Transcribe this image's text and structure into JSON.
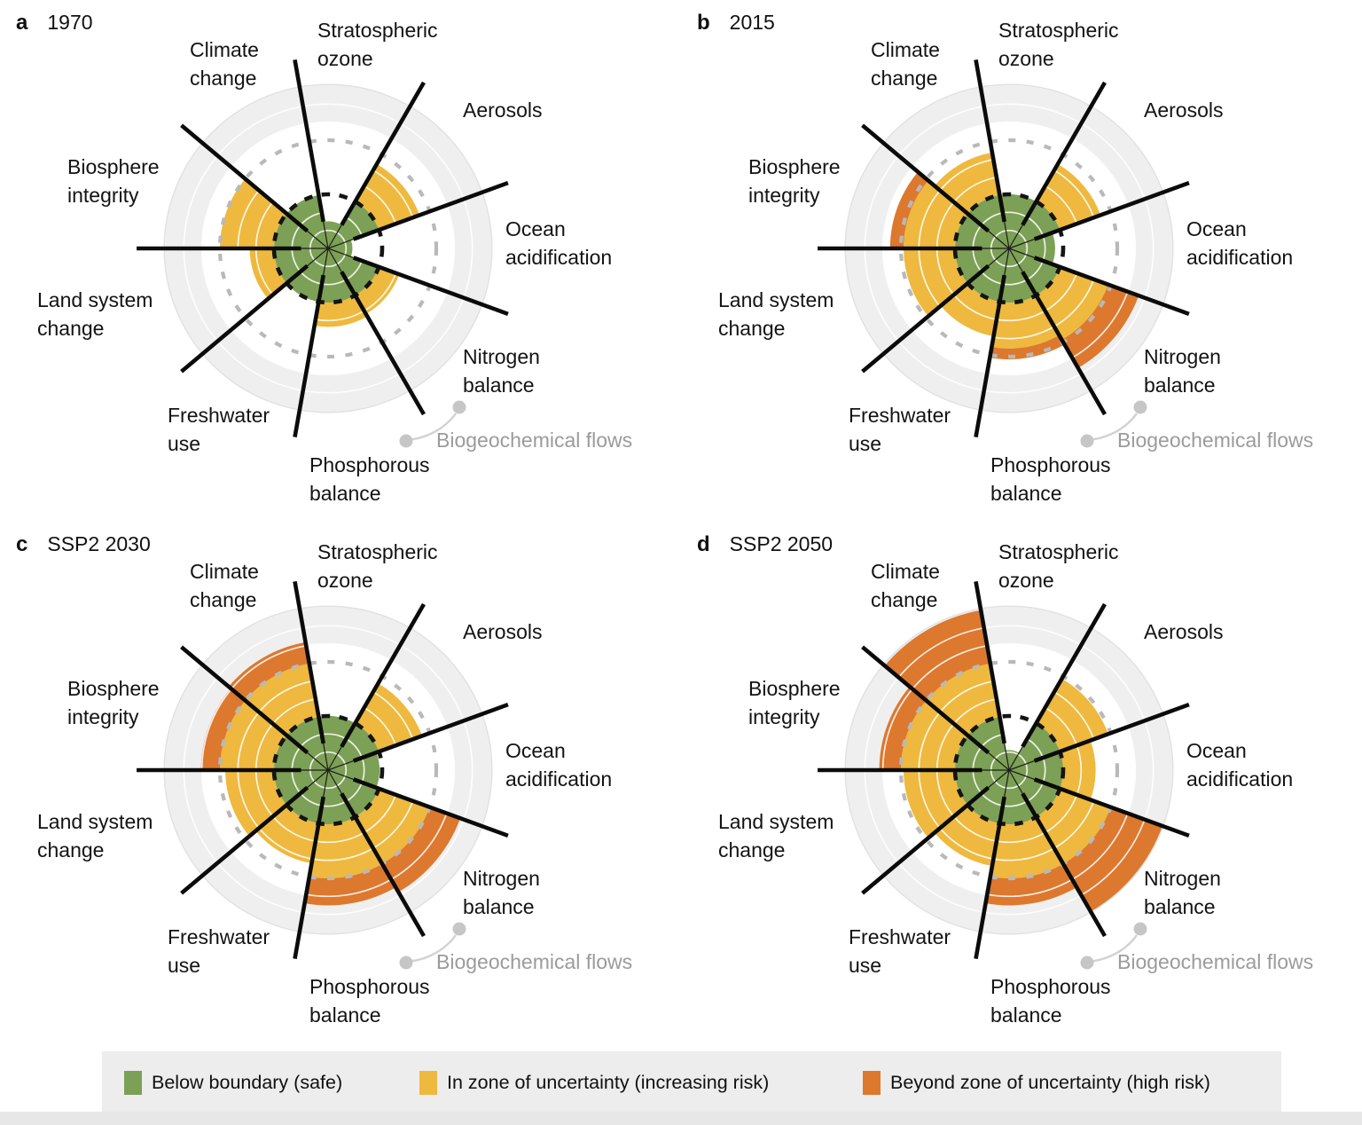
{
  "annotation": {
    "label": "Biogeochemical flows"
  },
  "sector_labels": [
    {
      "id": "climate-change",
      "line1": "Climate",
      "line2": "change"
    },
    {
      "id": "stratospheric-ozone",
      "line1": "Stratospheric",
      "line2": "ozone"
    },
    {
      "id": "aerosols",
      "line1": "Aerosols",
      "line2": ""
    },
    {
      "id": "ocean-acidification",
      "line1": "Ocean",
      "line2": "acidification"
    },
    {
      "id": "nitrogen-balance",
      "line1": "Nitrogen",
      "line2": "balance"
    },
    {
      "id": "phosphorous-balance",
      "line1": "Phosphorous",
      "line2": "balance"
    },
    {
      "id": "freshwater-use",
      "line1": "Freshwater",
      "line2": "use"
    },
    {
      "id": "land-system-change",
      "line1": "Land system",
      "line2": "change"
    },
    {
      "id": "biosphere-integrity",
      "line1": "Biosphere",
      "line2": "integrity"
    }
  ],
  "legend": {
    "items": [
      {
        "label": "Below boundary (safe)",
        "color": "#7ca055"
      },
      {
        "label": "In zone of uncertainty (increasing risk)",
        "color": "#eeb93e"
      },
      {
        "label": "Beyond zone of uncertainty (high risk)",
        "color": "#dd782f"
      }
    ],
    "background": "#ededed"
  },
  "colors": {
    "safe_green": "#7ca055",
    "uncertainty_yellow": "#eeb93e",
    "high_risk_orange": "#dd782f",
    "boundary_dash_black": "#141414",
    "uncertainty_dash_gray": "#b9b9b9",
    "outer_zone_fill": "#efefef",
    "gray_text": "#9b9b9b",
    "spoke_black": "#0b0b0b"
  },
  "chart_data": [
    {
      "type": "polar-sector",
      "panel": "a",
      "title": "1970",
      "radial_scale": {
        "boundary_black_dashed": 1.0,
        "uncertainty_outer_gray_dashed": 2.0,
        "outer_edge": 3.0,
        "gridline_step": 0.333
      },
      "sectors": [
        {
          "label": "Ocean acidification",
          "center_angle_deg": 0,
          "green_to": 0.45,
          "yellow_to": null,
          "orange_to": null,
          "status": "below boundary (safe)"
        },
        {
          "label": "Aerosols",
          "center_angle_deg": 40,
          "green_to": 1.0,
          "yellow_to": 1.8,
          "orange_to": null,
          "status": "in zone of uncertainty (increasing risk)"
        },
        {
          "label": "Stratospheric ozone",
          "center_angle_deg": 80,
          "green_to": 0.5,
          "yellow_to": null,
          "orange_to": null,
          "status": "below boundary (safe)"
        },
        {
          "label": "Climate change",
          "center_angle_deg": 120,
          "green_to": 1.0,
          "yellow_to": null,
          "orange_to": null,
          "status": "below boundary (safe)"
        },
        {
          "label": "Biosphere integrity",
          "center_angle_deg": 160,
          "green_to": 1.0,
          "yellow_to": 2.0,
          "orange_to": null,
          "status": "in zone of uncertainty (increasing risk)"
        },
        {
          "label": "Land system change",
          "center_angle_deg": 200,
          "green_to": 1.0,
          "yellow_to": 1.45,
          "orange_to": null,
          "status": "in zone of uncertainty (increasing risk)"
        },
        {
          "label": "Freshwater use",
          "center_angle_deg": 240,
          "green_to": 1.0,
          "yellow_to": null,
          "orange_to": null,
          "status": "below boundary (safe)"
        },
        {
          "label": "Phosphorous balance",
          "center_angle_deg": 280,
          "green_to": 1.0,
          "yellow_to": 1.45,
          "orange_to": null,
          "status": "in zone of uncertainty (increasing risk)"
        },
        {
          "label": "Nitrogen balance",
          "center_angle_deg": 320,
          "green_to": 1.0,
          "yellow_to": 1.4,
          "orange_to": null,
          "status": "in zone of uncertainty (increasing risk)"
        }
      ]
    },
    {
      "type": "polar-sector",
      "panel": "b",
      "title": "2015",
      "radial_scale": {
        "boundary_black_dashed": 1.0,
        "uncertainty_outer_gray_dashed": 2.0,
        "outer_edge": 3.0,
        "gridline_step": 0.333
      },
      "sectors": [
        {
          "label": "Ocean acidification",
          "center_angle_deg": 0,
          "green_to": 0.85,
          "yellow_to": null,
          "orange_to": null,
          "status": "below boundary (safe)"
        },
        {
          "label": "Aerosols",
          "center_angle_deg": 40,
          "green_to": 1.0,
          "yellow_to": 1.8,
          "orange_to": null,
          "status": "in zone of uncertainty (increasing risk)"
        },
        {
          "label": "Stratospheric ozone",
          "center_angle_deg": 80,
          "green_to": 1.0,
          "yellow_to": null,
          "orange_to": null,
          "status": "below boundary (safe)"
        },
        {
          "label": "Climate change",
          "center_angle_deg": 120,
          "green_to": 1.0,
          "yellow_to": 1.8,
          "orange_to": null,
          "status": "in zone of uncertainty (increasing risk)"
        },
        {
          "label": "Biosphere integrity",
          "center_angle_deg": 160,
          "green_to": 1.0,
          "yellow_to": 1.95,
          "orange_to": 2.2,
          "status": "beyond zone of uncertainty (high risk)"
        },
        {
          "label": "Land system change",
          "center_angle_deg": 200,
          "green_to": 1.0,
          "yellow_to": 1.95,
          "orange_to": null,
          "status": "in zone of uncertainty (increasing risk)"
        },
        {
          "label": "Freshwater use",
          "center_angle_deg": 240,
          "green_to": 1.0,
          "yellow_to": 1.65,
          "orange_to": null,
          "status": "in zone of uncertainty (increasing risk)"
        },
        {
          "label": "Phosphorous balance",
          "center_angle_deg": 280,
          "green_to": 1.0,
          "yellow_to": 1.85,
          "orange_to": 2.05,
          "status": "beyond zone of uncertainty (high risk)"
        },
        {
          "label": "Nitrogen balance",
          "center_angle_deg": 320,
          "green_to": 1.0,
          "yellow_to": 1.95,
          "orange_to": 2.55,
          "status": "beyond zone of uncertainty (high risk)"
        }
      ]
    },
    {
      "type": "polar-sector",
      "panel": "c",
      "title": "SSP2 2030",
      "radial_scale": {
        "boundary_black_dashed": 1.0,
        "uncertainty_outer_gray_dashed": 2.0,
        "outer_edge": 3.0,
        "gridline_step": 0.333
      },
      "sectors": [
        {
          "label": "Ocean acidification",
          "center_angle_deg": 0,
          "green_to": 0.95,
          "yellow_to": null,
          "orange_to": null,
          "status": "below boundary (safe)"
        },
        {
          "label": "Aerosols",
          "center_angle_deg": 40,
          "green_to": 1.0,
          "yellow_to": 1.85,
          "orange_to": null,
          "status": "in zone of uncertainty (increasing risk)"
        },
        {
          "label": "Stratospheric ozone",
          "center_angle_deg": 80,
          "green_to": 1.0,
          "yellow_to": null,
          "orange_to": null,
          "status": "below boundary (safe)"
        },
        {
          "label": "Climate change",
          "center_angle_deg": 120,
          "green_to": 1.0,
          "yellow_to": 2.0,
          "orange_to": 2.4,
          "status": "beyond zone of uncertainty (high risk)"
        },
        {
          "label": "Biosphere integrity",
          "center_angle_deg": 160,
          "green_to": 1.0,
          "yellow_to": 2.0,
          "orange_to": 2.35,
          "status": "beyond zone of uncertainty (high risk)"
        },
        {
          "label": "Land system change",
          "center_angle_deg": 200,
          "green_to": 1.0,
          "yellow_to": 1.9,
          "orange_to": null,
          "status": "in zone of uncertainty (increasing risk)"
        },
        {
          "label": "Freshwater use",
          "center_angle_deg": 240,
          "green_to": 1.0,
          "yellow_to": 1.75,
          "orange_to": null,
          "status": "in zone of uncertainty (increasing risk)"
        },
        {
          "label": "Phosphorous balance",
          "center_angle_deg": 280,
          "green_to": 1.0,
          "yellow_to": 2.0,
          "orange_to": 2.5,
          "status": "beyond zone of uncertainty (high risk)"
        },
        {
          "label": "Nitrogen balance",
          "center_angle_deg": 320,
          "green_to": 1.0,
          "yellow_to": 2.0,
          "orange_to": 2.6,
          "status": "beyond zone of uncertainty (high risk)"
        }
      ]
    },
    {
      "type": "polar-sector",
      "panel": "d",
      "title": "SSP2 2050",
      "radial_scale": {
        "boundary_black_dashed": 1.0,
        "uncertainty_outer_gray_dashed": 2.0,
        "outer_edge": 3.0,
        "gridline_step": 0.333
      },
      "sectors": [
        {
          "label": "Ocean acidification",
          "center_angle_deg": 0,
          "green_to": 1.0,
          "yellow_to": 1.6,
          "orange_to": null,
          "status": "in zone of uncertainty (increasing risk)"
        },
        {
          "label": "Aerosols",
          "center_angle_deg": 40,
          "green_to": 1.0,
          "yellow_to": 1.95,
          "orange_to": null,
          "status": "in zone of uncertainty (increasing risk)"
        },
        {
          "label": "Stratospheric ozone",
          "center_angle_deg": 80,
          "green_to": 0.37,
          "yellow_to": null,
          "orange_to": null,
          "status": "below boundary (safe)"
        },
        {
          "label": "Climate change",
          "center_angle_deg": 120,
          "green_to": 1.0,
          "yellow_to": 2.0,
          "orange_to": 3.0,
          "status": "beyond zone of uncertainty (high risk)"
        },
        {
          "label": "Biosphere integrity",
          "center_angle_deg": 160,
          "green_to": 1.0,
          "yellow_to": 2.0,
          "orange_to": 2.4,
          "status": "beyond zone of uncertainty (high risk)"
        },
        {
          "label": "Land system change",
          "center_angle_deg": 200,
          "green_to": 1.0,
          "yellow_to": 1.95,
          "orange_to": null,
          "status": "in zone of uncertainty (increasing risk)"
        },
        {
          "label": "Freshwater use",
          "center_angle_deg": 240,
          "green_to": 1.0,
          "yellow_to": 1.8,
          "orange_to": null,
          "status": "in zone of uncertainty (increasing risk)"
        },
        {
          "label": "Phosphorous balance",
          "center_angle_deg": 280,
          "green_to": 1.0,
          "yellow_to": 2.0,
          "orange_to": 2.5,
          "status": "beyond zone of uncertainty (high risk)"
        },
        {
          "label": "Nitrogen balance",
          "center_angle_deg": 320,
          "green_to": 1.0,
          "yellow_to": 2.0,
          "orange_to": 3.02,
          "status": "beyond zone of uncertainty (high risk)"
        }
      ]
    }
  ]
}
